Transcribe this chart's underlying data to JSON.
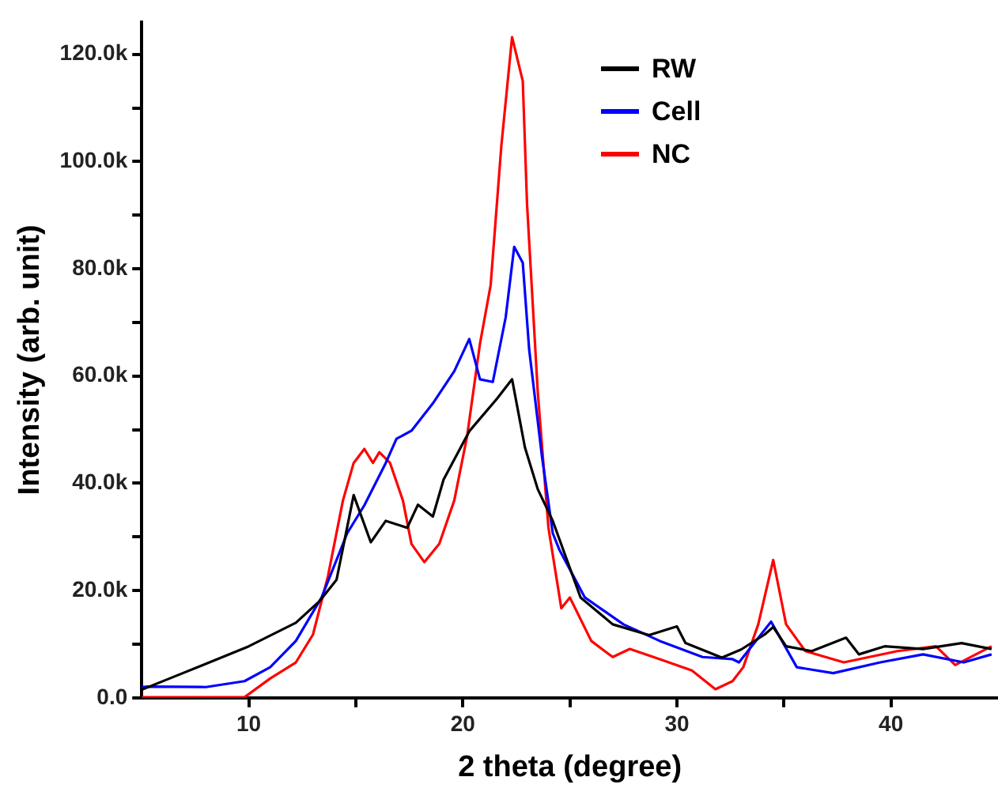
{
  "chart_data": {
    "type": "line",
    "xlabel": "2 theta (degree)",
    "ylabel": "Intensity (arb. unit)",
    "xlim": [
      5,
      45
    ],
    "xticks": [
      10,
      {
        "value": 15,
        "label": null
      },
      20,
      {
        "value": 25,
        "label": null
      },
      30,
      {
        "value": 35,
        "label": null
      },
      40
    ],
    "ylim": [
      0,
      126000
    ],
    "yticks": [
      {
        "value": 0,
        "label": "0.0"
      },
      {
        "value": 10000,
        "label": null
      },
      {
        "value": 20000,
        "label": "20.0k"
      },
      {
        "value": 30000,
        "label": null
      },
      {
        "value": 40000,
        "label": "40.0k"
      },
      {
        "value": 50000,
        "label": null
      },
      {
        "value": 60000,
        "label": "60.0k"
      },
      {
        "value": 70000,
        "label": null
      },
      {
        "value": 80000,
        "label": "80.0k"
      },
      {
        "value": 90000,
        "label": null
      },
      {
        "value": 100000,
        "label": "100.0k"
      },
      {
        "value": 110000,
        "label": null
      },
      {
        "value": 120000,
        "label": "120.0k"
      }
    ],
    "legend": "top right",
    "series": [
      {
        "name": "RW",
        "color": "#000000",
        "x": [
          5,
          6.3,
          7.8,
          10,
          12.2,
          13.3,
          14.1,
          14.9,
          15.7,
          16.4,
          17.4,
          17.9,
          18.6,
          19.1,
          20.3,
          21.6,
          22.3,
          22.9,
          23.5,
          24.2,
          25.5,
          27,
          28.7,
          30,
          30.4,
          32.1,
          33,
          34.1,
          34.5,
          35.1,
          36.3,
          37.9,
          38.5,
          39.7,
          41.5,
          43.3,
          44.7
        ],
        "values": [
          1500,
          3600,
          6000,
          9600,
          14000,
          18000,
          22000,
          37800,
          29000,
          33000,
          31700,
          36000,
          33800,
          40700,
          49700,
          55800,
          59400,
          46700,
          38900,
          33000,
          18700,
          13700,
          11700,
          13300,
          10200,
          7500,
          9000,
          11800,
          13200,
          9600,
          8700,
          11200,
          8100,
          9600,
          9100,
          10200,
          9100
        ]
      },
      {
        "name": "Cell",
        "color": "#0000ff",
        "x": [
          5,
          5.3,
          8,
          9.8,
          11,
          12.2,
          13.4,
          14.6,
          15.4,
          16.4,
          16.9,
          17.6,
          18.6,
          19.6,
          20.3,
          20.8,
          21.4,
          22,
          22.4,
          22.8,
          23.1,
          23.7,
          24.2,
          24.5,
          25.7,
          27.5,
          29.2,
          31.2,
          32.6,
          32.9,
          34.4,
          35.6,
          37.3,
          39.5,
          41.5,
          43.4,
          44.7
        ],
        "values": [
          2000,
          2100,
          2000,
          3100,
          5700,
          10600,
          18700,
          30700,
          35900,
          43800,
          48300,
          49800,
          54900,
          60900,
          66900,
          59400,
          58900,
          70900,
          84100,
          81100,
          64900,
          44900,
          30700,
          27700,
          18700,
          13700,
          10600,
          7600,
          7200,
          6600,
          14200,
          5700,
          4600,
          6600,
          8100,
          6600,
          8100
        ]
      },
      {
        "name": "NC",
        "color": "#ff0000",
        "x": [
          5,
          7.3,
          9.8,
          11,
          12.2,
          13,
          13.7,
          14.4,
          14.9,
          15.4,
          15.8,
          16.1,
          16.6,
          17.2,
          17.6,
          18.2,
          18.9,
          19.6,
          20.2,
          20.8,
          21.3,
          21.8,
          22.3,
          22.8,
          23,
          23.5,
          24,
          24.6,
          25,
          26,
          27,
          27.8,
          29.2,
          30.7,
          31.8,
          32.6,
          33.1,
          33.8,
          34.5,
          35.1,
          36,
          37.8,
          40.3,
          42.1,
          43,
          44.7
        ],
        "values": [
          100,
          100,
          100,
          3600,
          6600,
          11800,
          22700,
          36800,
          43800,
          46400,
          43800,
          45800,
          43800,
          36800,
          28700,
          25300,
          28700,
          36800,
          48800,
          66000,
          77000,
          103000,
          123200,
          115000,
          92000,
          57000,
          31700,
          16700,
          18700,
          10600,
          7600,
          9100,
          7200,
          5100,
          1600,
          3100,
          5700,
          13700,
          25700,
          13700,
          8700,
          6600,
          8700,
          9600,
          6100,
          9600
        ]
      }
    ]
  }
}
